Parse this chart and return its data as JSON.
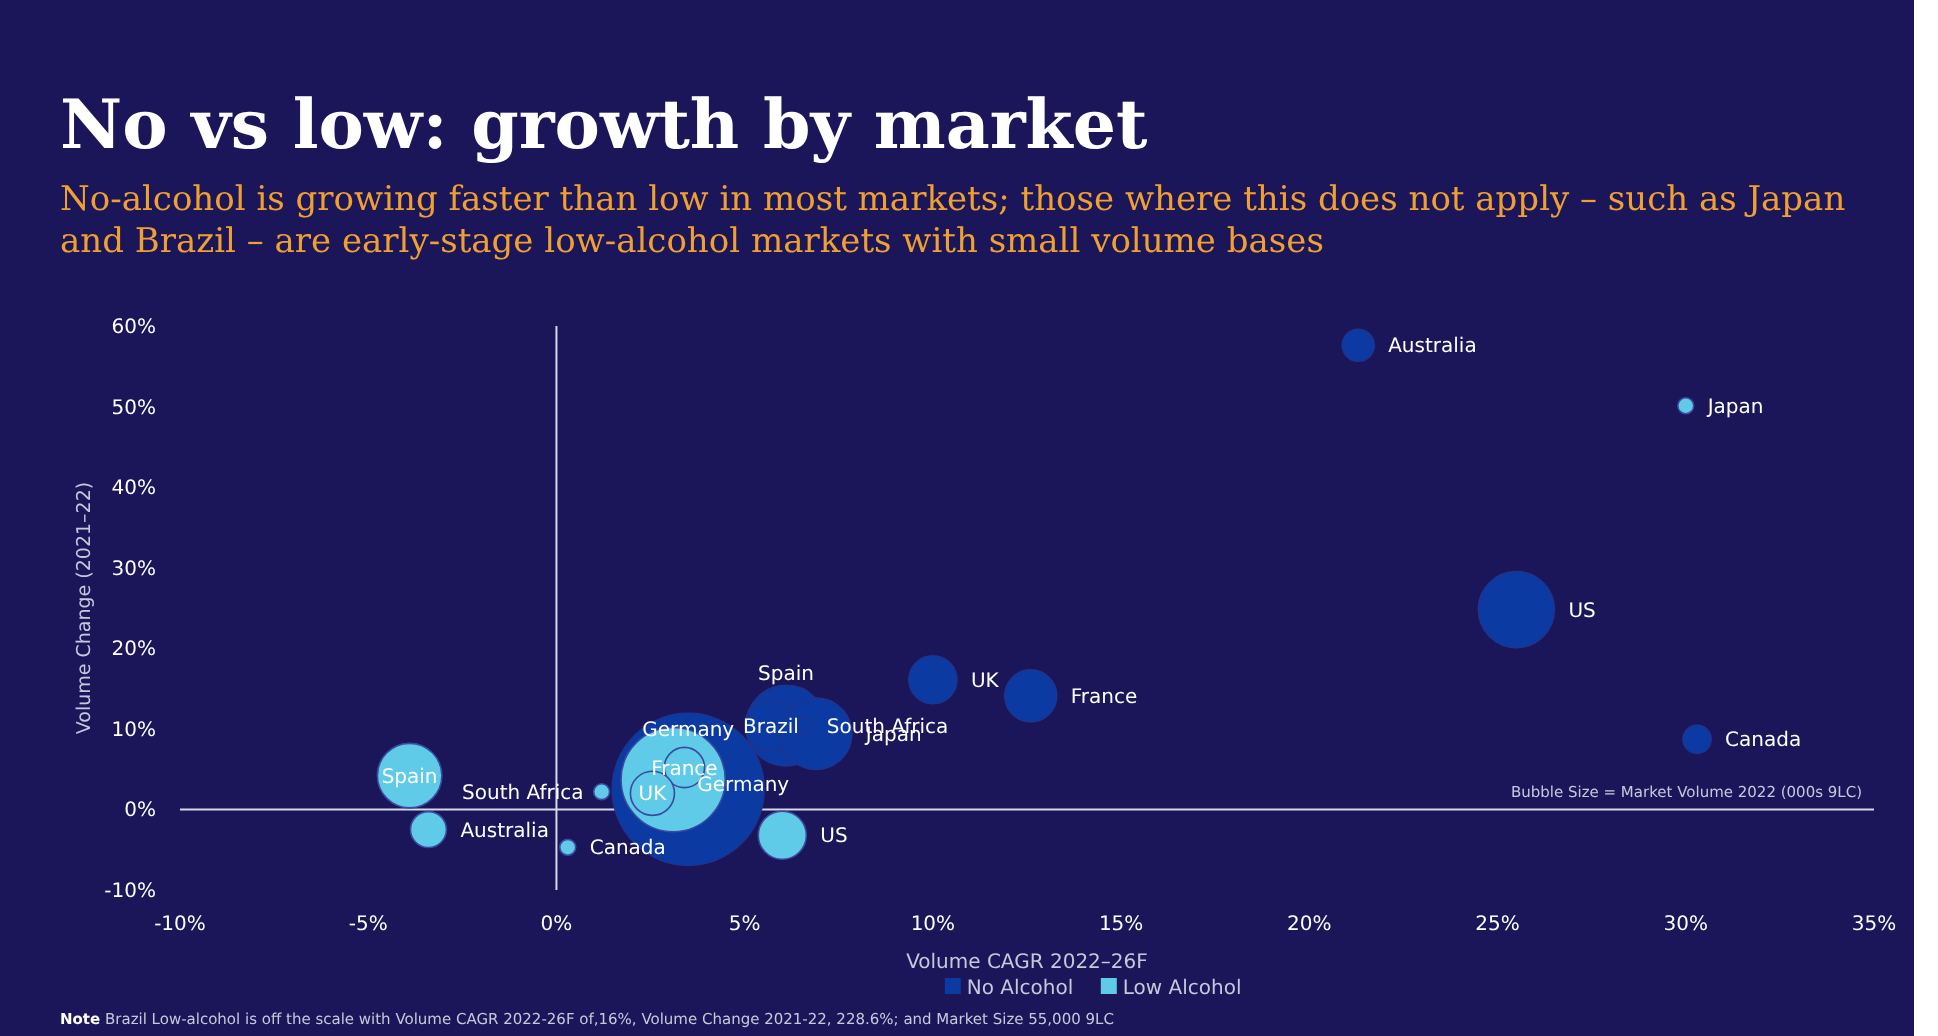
{
  "chart_data": {
    "type": "bubble",
    "title": "No vs low: growth by market",
    "subtitle": "No-alcohol is growing faster than low in most markets; those where this does not apply – such as Japan and Brazil – are early-stage low-alcohol markets with small volume bases",
    "xlabel": "Volume CAGR 2022–26F",
    "ylabel": "Volume Change (2021–22)",
    "xlim": [
      -10,
      35
    ],
    "ylim": [
      -10,
      60
    ],
    "xticks": [
      {
        "value": -10,
        "label": "-10%"
      },
      {
        "value": -5,
        "label": "-5%"
      },
      {
        "value": 0,
        "label": "0%"
      },
      {
        "value": 5,
        "label": "5%"
      },
      {
        "value": 10,
        "label": "10%"
      },
      {
        "value": 15,
        "label": "15%"
      },
      {
        "value": 20,
        "label": "20%"
      },
      {
        "value": 25,
        "label": "25%"
      },
      {
        "value": 30,
        "label": "30%"
      },
      {
        "value": 35,
        "label": "35%"
      }
    ],
    "yticks": [
      {
        "value": -10,
        "label": "-10%"
      },
      {
        "value": 0,
        "label": "0%"
      },
      {
        "value": 10,
        "label": "10%"
      },
      {
        "value": 20,
        "label": "20%"
      },
      {
        "value": 30,
        "label": "30%"
      },
      {
        "value": 40,
        "label": "40%"
      },
      {
        "value": 50,
        "label": "50%"
      },
      {
        "value": 60,
        "label": "60%"
      }
    ],
    "legend": "bottom",
    "series": [
      {
        "name": "No Alcohol",
        "color": "#0b3aa3",
        "x": [
          3.5,
          6.1,
          5.7,
          6.9,
          6.6,
          10.0,
          12.6,
          21.3,
          25.5,
          30.3
        ],
        "values": [
          2.5,
          10.4,
          10.4,
          9.4,
          10.4,
          16.1,
          14.1,
          57.6,
          24.8,
          8.7
        ],
        "sizes": [
          1,
          0.28,
          0.117,
          0.22,
          0.011,
          0.1,
          0.117,
          0.044,
          0.25,
          0.034
        ]
      },
      {
        "name": "Low Alcohol",
        "color": "#5fcbe8",
        "x": [
          3.1,
          -3.9,
          -3.4,
          0.3,
          1.2,
          6.0,
          3.4,
          2.55,
          30.0
        ],
        "values": [
          3.7,
          4.2,
          -2.5,
          -4.7,
          2.2,
          -3.2,
          5.2,
          2.0,
          50.1
        ],
        "sizes": [
          0.47,
          0.18,
          0.056,
          0.011,
          0.011,
          0.1,
          0.07,
          0.084,
          0.011
        ]
      }
    ],
    "annotations": [
      {
        "text": "Australia",
        "x": 21.3,
        "y": 57.6
      },
      {
        "text": "Japan",
        "x": 30.0,
        "y": 50.1
      },
      {
        "text": "US",
        "x": 25.5,
        "y": 24.8
      },
      {
        "text": "Canada",
        "x": 30.3,
        "y": 8.7
      },
      {
        "text": "UK",
        "x": 10.0,
        "y": 16.1
      },
      {
        "text": "France",
        "x": 12.6,
        "y": 14.1
      },
      {
        "text": "Spain",
        "x": 6.1,
        "y": 10.4
      },
      {
        "text": "Germany",
        "x": 3.5,
        "y": 2.5
      },
      {
        "text": "Brazil",
        "x": 5.7,
        "y": 10.4
      },
      {
        "text": "South Africa",
        "x": 6.6,
        "y": 10.4
      },
      {
        "text": "Japan",
        "x": 6.9,
        "y": 9.4
      },
      {
        "text": "Spain",
        "x": -3.9,
        "y": 4.2
      },
      {
        "text": "South Africa",
        "x": 1.2,
        "y": 2.2
      },
      {
        "text": "Australia",
        "x": -3.4,
        "y": -2.5
      },
      {
        "text": "Canada",
        "x": 0.3,
        "y": -4.7
      },
      {
        "text": "UK",
        "x": 2.55,
        "y": 2.0
      },
      {
        "text": "France",
        "x": 3.4,
        "y": 5.2
      },
      {
        "text": "Germany",
        "x": 3.1,
        "y": 3.7
      },
      {
        "text": "US",
        "x": 6.0,
        "y": -3.2
      },
      "Bubble Size = Market Volume 2022 (000s 9LC)",
      "Note Brazil Low-alcohol is off the scale with Volume CAGR 2022-26F of,16%, Volume Change 2021-22, 228.6%; and Market Size 55,000 9LC"
    ]
  }
}
